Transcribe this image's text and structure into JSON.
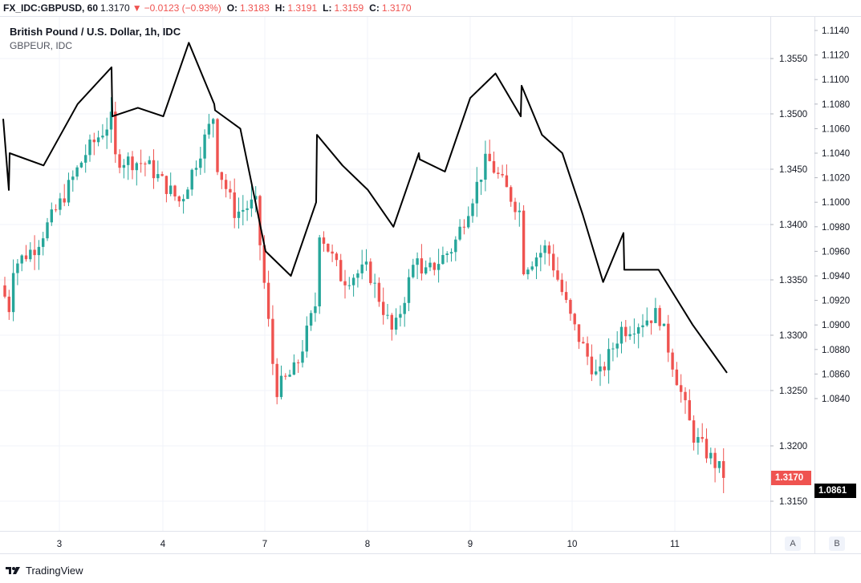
{
  "header": {
    "symbol": "FX_IDC:GBPUSD, 60",
    "last": "1.3170",
    "change_arrow": "▼",
    "change": "−0.0123 (−0.93%)",
    "o_label": "O:",
    "o_value": "1.3183",
    "h_label": "H:",
    "h_value": "1.3191",
    "l_label": "L:",
    "l_value": "1.3159",
    "c_label": "C:",
    "c_value": "1.3170"
  },
  "legend": {
    "main_series": "British Pound / U.S. Dollar, 1h, IDC",
    "compare_series": "GBPEUR, IDC"
  },
  "footer": {
    "brand": "TradingView"
  },
  "axis_buttons": {
    "a": "A",
    "b": "B"
  },
  "price_tags": {
    "gbpusd": "1.3170",
    "gbpeur": "1.0861"
  },
  "colors": {
    "up": "#26a69a",
    "down": "#ef5350",
    "compare_line": "#000000",
    "grid": "#f0f3fa",
    "axis_text": "#131722"
  },
  "chart_data": {
    "type": "line",
    "candles_series_name": "British Pound / U.S. Dollar, 1h, IDC",
    "line_series_name": "GBPEUR, IDC",
    "x_tick_labels": [
      "3",
      "4",
      "7",
      "8",
      "9",
      "10",
      "11"
    ],
    "y_ticks_left_axis": [
      "1.3550",
      "1.3500",
      "1.3450",
      "1.3400",
      "1.3350",
      "1.3300",
      "1.3250",
      "1.3200",
      "1.3150"
    ],
    "y_ticks_right_axis": [
      "1.1140",
      "1.1120",
      "1.1100",
      "1.1080",
      "1.1060",
      "1.1040",
      "1.1020",
      "1.1000",
      "1.0980",
      "1.0960",
      "1.0940",
      "1.0920",
      "1.0900",
      "1.0880",
      "1.0860",
      "1.0840"
    ],
    "gbpusd_close_keypoints": [
      {
        "day": "2",
        "close": 1.3345
      },
      {
        "day": "2",
        "close": 1.331
      },
      {
        "day": "3",
        "close": 1.336
      },
      {
        "day": "3",
        "close": 1.338
      },
      {
        "day": "3",
        "close": 1.342
      },
      {
        "day": "3",
        "close": 1.3465
      },
      {
        "day": "3",
        "close": 1.3495
      },
      {
        "day": "4",
        "close": 1.346
      },
      {
        "day": "4",
        "close": 1.3455
      },
      {
        "day": "4",
        "close": 1.342
      },
      {
        "day": "4",
        "close": 1.35
      },
      {
        "day": "7",
        "close": 1.346
      },
      {
        "day": "7",
        "close": 1.341
      },
      {
        "day": "7",
        "close": 1.342
      },
      {
        "day": "7",
        "close": 1.325
      },
      {
        "day": "7",
        "close": 1.327
      },
      {
        "day": "7",
        "close": 1.333
      },
      {
        "day": "8",
        "close": 1.34
      },
      {
        "day": "8",
        "close": 1.335
      },
      {
        "day": "8",
        "close": 1.336
      },
      {
        "day": "8",
        "close": 1.33
      },
      {
        "day": "8",
        "close": 1.338
      },
      {
        "day": "9",
        "close": 1.335
      },
      {
        "day": "9",
        "close": 1.338
      },
      {
        "day": "9",
        "close": 1.346
      },
      {
        "day": "9",
        "close": 1.341
      },
      {
        "day": "10",
        "close": 1.336
      },
      {
        "day": "10",
        "close": 1.338
      },
      {
        "day": "10",
        "close": 1.331
      },
      {
        "day": "10",
        "close": 1.326
      },
      {
        "day": "10",
        "close": 1.331
      },
      {
        "day": "11",
        "close": 1.3305
      },
      {
        "day": "11",
        "close": 1.332
      },
      {
        "day": "11",
        "close": 1.321
      },
      {
        "day": "11",
        "close": 1.317
      }
    ],
    "gbpeur_keypoints": [
      {
        "day": "2",
        "value": 1.1068
      },
      {
        "day": "2",
        "value": 1.101
      },
      {
        "day": "3",
        "value": 1.104
      },
      {
        "day": "3",
        "value": 1.103
      },
      {
        "day": "3",
        "value": 1.108
      },
      {
        "day": "3",
        "value": 1.111
      },
      {
        "day": "4",
        "value": 1.107
      },
      {
        "day": "4",
        "value": 1.1077
      },
      {
        "day": "4",
        "value": 1.107
      },
      {
        "day": "4",
        "value": 1.113
      },
      {
        "day": "4",
        "value": 1.108
      },
      {
        "day": "7",
        "value": 1.1075
      },
      {
        "day": "7",
        "value": 1.106
      },
      {
        "day": "7",
        "value": 1.096
      },
      {
        "day": "7",
        "value": 1.094
      },
      {
        "day": "7",
        "value": 1.1
      },
      {
        "day": "8",
        "value": 1.1055
      },
      {
        "day": "8",
        "value": 1.103
      },
      {
        "day": "8",
        "value": 1.101
      },
      {
        "day": "8",
        "value": 1.098
      },
      {
        "day": "8",
        "value": 1.104
      },
      {
        "day": "9",
        "value": 1.1035
      },
      {
        "day": "9",
        "value": 1.1025
      },
      {
        "day": "9",
        "value": 1.1085
      },
      {
        "day": "9",
        "value": 1.1105
      },
      {
        "day": "9",
        "value": 1.107
      },
      {
        "day": "10",
        "value": 1.1095
      },
      {
        "day": "10",
        "value": 1.1055
      },
      {
        "day": "10",
        "value": 1.104
      },
      {
        "day": "10",
        "value": 1.099
      },
      {
        "day": "10",
        "value": 1.0935
      },
      {
        "day": "10",
        "value": 1.0975
      },
      {
        "day": "11",
        "value": 1.0945
      },
      {
        "day": "11",
        "value": 1.0945
      },
      {
        "day": "11",
        "value": 1.09
      },
      {
        "day": "11",
        "value": 1.0861
      }
    ]
  }
}
